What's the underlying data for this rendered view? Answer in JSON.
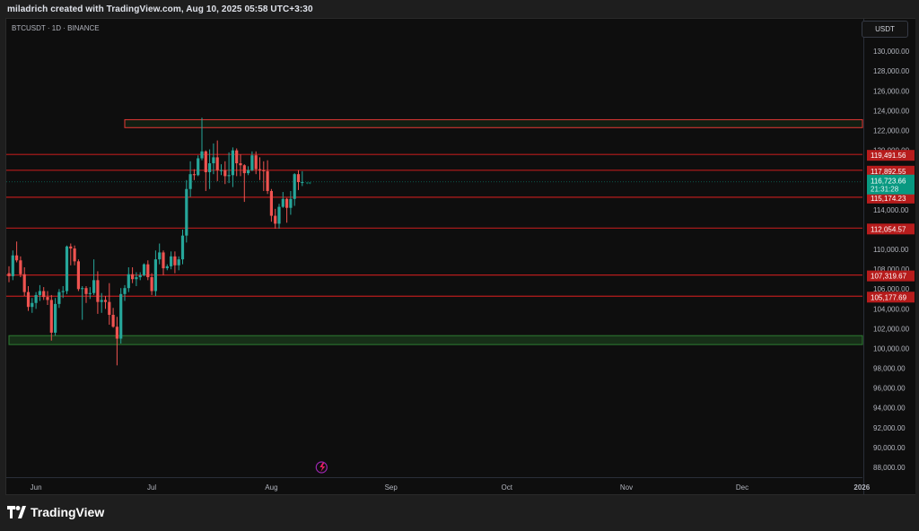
{
  "header": {
    "caption": "miladrich created with TradingView.com, Aug 10, 2025 05:58 UTC+3:30"
  },
  "chart": {
    "symbol_line": "BTCUSDT · 1D · BINANCE",
    "currency_label": "USDT",
    "last_price": "116,723.66",
    "countdown": "21:31:28"
  },
  "footer": {
    "brand": "TradingView"
  },
  "colors": {
    "up": "#26a69a",
    "down": "#ef5350",
    "level_line": "#b71c1c",
    "level_box": "#e53935",
    "support_box": "#2e7d32",
    "last_price": "#089981",
    "plot_bg": "#0e0e0e"
  },
  "chart_data": {
    "type": "candlestick",
    "title": "BTCUSDT · 1D · BINANCE",
    "y_axis": {
      "ylim": [
        87000,
        134000
      ],
      "ticks": [
        "88,000.00",
        "90,000.00",
        "92,000.00",
        "94,000.00",
        "96,000.00",
        "98,000.00",
        "100,000.00",
        "102,000.00",
        "104,000.00",
        "106,000.00",
        "108,000.00",
        "110,000.00",
        "114,000.00",
        "120,000.00",
        "122,000.00",
        "124,000.00",
        "126,000.00",
        "128,000.00",
        "130,000.00"
      ]
    },
    "x_axis": {
      "labels": [
        "Jun",
        "Jul",
        "Aug",
        "Sep",
        "Oct",
        "Nov",
        "Dec",
        "2026"
      ]
    },
    "horizontal_levels": [
      {
        "price": 119491.56,
        "label": "119,491.56"
      },
      {
        "price": 117892.55,
        "label": "117,892.55"
      },
      {
        "price": 115174.23,
        "label": "115,174.23"
      },
      {
        "price": 112054.57,
        "label": "112,054.57"
      },
      {
        "price": 107319.67,
        "label": "107,319.67"
      },
      {
        "price": 105177.69,
        "label": "105,177.69"
      }
    ],
    "zones": [
      {
        "kind": "resistance",
        "from_date": "2025-06-24",
        "to_date": "2026-01-01",
        "top": 123000,
        "bottom": 122200
      },
      {
        "kind": "support",
        "from_date": "2025-05-25",
        "to_date": "2026-01-01",
        "top": 101200,
        "bottom": 100300
      }
    ],
    "last_price": 116723.66,
    "candles": [
      {
        "d": "2025-05-25",
        "o": 107500,
        "h": 108200,
        "l": 106600,
        "c": 107200
      },
      {
        "d": "2025-05-26",
        "o": 107200,
        "h": 109800,
        "l": 106800,
        "c": 109300
      },
      {
        "d": "2025-05-27",
        "o": 109300,
        "h": 110700,
        "l": 108600,
        "c": 108800
      },
      {
        "d": "2025-05-28",
        "o": 108800,
        "h": 109200,
        "l": 107100,
        "c": 107400
      },
      {
        "d": "2025-05-29",
        "o": 107400,
        "h": 108100,
        "l": 105200,
        "c": 105600
      },
      {
        "d": "2025-05-30",
        "o": 105600,
        "h": 106200,
        "l": 103700,
        "c": 104100
      },
      {
        "d": "2025-05-31",
        "o": 104100,
        "h": 105000,
        "l": 103500,
        "c": 104500
      },
      {
        "d": "2025-06-01",
        "o": 104500,
        "h": 105600,
        "l": 103900,
        "c": 105300
      },
      {
        "d": "2025-06-02",
        "o": 105300,
        "h": 106300,
        "l": 104700,
        "c": 105700
      },
      {
        "d": "2025-06-03",
        "o": 105700,
        "h": 106100,
        "l": 104800,
        "c": 105100
      },
      {
        "d": "2025-06-04",
        "o": 105100,
        "h": 105700,
        "l": 104300,
        "c": 104800
      },
      {
        "d": "2025-06-05",
        "o": 104800,
        "h": 105300,
        "l": 100700,
        "c": 101500
      },
      {
        "d": "2025-06-06",
        "o": 101500,
        "h": 105000,
        "l": 101200,
        "c": 104400
      },
      {
        "d": "2025-06-07",
        "o": 104400,
        "h": 105900,
        "l": 104000,
        "c": 105600
      },
      {
        "d": "2025-06-08",
        "o": 105600,
        "h": 106200,
        "l": 105000,
        "c": 105700
      },
      {
        "d": "2025-06-09",
        "o": 105700,
        "h": 110300,
        "l": 105400,
        "c": 110200
      },
      {
        "d": "2025-06-10",
        "o": 110200,
        "h": 110500,
        "l": 108300,
        "c": 110000
      },
      {
        "d": "2025-06-11",
        "o": 110000,
        "h": 110300,
        "l": 108300,
        "c": 108700
      },
      {
        "d": "2025-06-12",
        "o": 108700,
        "h": 108900,
        "l": 105700,
        "c": 105900
      },
      {
        "d": "2025-06-13",
        "o": 105900,
        "h": 106200,
        "l": 102800,
        "c": 106000
      },
      {
        "d": "2025-06-14",
        "o": 106000,
        "h": 106200,
        "l": 104500,
        "c": 105400
      },
      {
        "d": "2025-06-15",
        "o": 105400,
        "h": 106100,
        "l": 104900,
        "c": 105500
      },
      {
        "d": "2025-06-16",
        "o": 105500,
        "h": 108900,
        "l": 105300,
        "c": 106800
      },
      {
        "d": "2025-06-17",
        "o": 106800,
        "h": 107700,
        "l": 103400,
        "c": 104600
      },
      {
        "d": "2025-06-18",
        "o": 104600,
        "h": 105500,
        "l": 103500,
        "c": 104800
      },
      {
        "d": "2025-06-19",
        "o": 104800,
        "h": 105200,
        "l": 103900,
        "c": 104600
      },
      {
        "d": "2025-06-20",
        "o": 104600,
        "h": 106500,
        "l": 102300,
        "c": 103300
      },
      {
        "d": "2025-06-21",
        "o": 103300,
        "h": 104000,
        "l": 102000,
        "c": 102100
      },
      {
        "d": "2025-06-22",
        "o": 102100,
        "h": 103100,
        "l": 98200,
        "c": 100900
      },
      {
        "d": "2025-06-23",
        "o": 100900,
        "h": 106000,
        "l": 100400,
        "c": 105400
      },
      {
        "d": "2025-06-24",
        "o": 105400,
        "h": 106300,
        "l": 104700,
        "c": 106000
      },
      {
        "d": "2025-06-25",
        "o": 106000,
        "h": 108100,
        "l": 105600,
        "c": 107400
      },
      {
        "d": "2025-06-26",
        "o": 107400,
        "h": 108100,
        "l": 106500,
        "c": 106900
      },
      {
        "d": "2025-06-27",
        "o": 106900,
        "h": 107600,
        "l": 106200,
        "c": 107100
      },
      {
        "d": "2025-06-28",
        "o": 107100,
        "h": 107600,
        "l": 106800,
        "c": 107300
      },
      {
        "d": "2025-06-29",
        "o": 107300,
        "h": 108500,
        "l": 107200,
        "c": 108400
      },
      {
        "d": "2025-06-30",
        "o": 108400,
        "h": 108800,
        "l": 106800,
        "c": 107100
      },
      {
        "d": "2025-07-01",
        "o": 107100,
        "h": 107500,
        "l": 105300,
        "c": 105700
      },
      {
        "d": "2025-07-02",
        "o": 105700,
        "h": 109800,
        "l": 105200,
        "c": 108900
      },
      {
        "d": "2025-07-03",
        "o": 108900,
        "h": 110500,
        "l": 108400,
        "c": 109600
      },
      {
        "d": "2025-07-04",
        "o": 109600,
        "h": 109800,
        "l": 107300,
        "c": 108000
      },
      {
        "d": "2025-07-05",
        "o": 108000,
        "h": 108400,
        "l": 107800,
        "c": 108200
      },
      {
        "d": "2025-07-06",
        "o": 108200,
        "h": 109700,
        "l": 107900,
        "c": 109200
      },
      {
        "d": "2025-07-07",
        "o": 109200,
        "h": 109700,
        "l": 107500,
        "c": 108300
      },
      {
        "d": "2025-07-08",
        "o": 108300,
        "h": 109200,
        "l": 107800,
        "c": 108900
      },
      {
        "d": "2025-07-09",
        "o": 108900,
        "h": 111900,
        "l": 108400,
        "c": 111300
      },
      {
        "d": "2025-07-10",
        "o": 111300,
        "h": 116900,
        "l": 110600,
        "c": 116000
      },
      {
        "d": "2025-07-11",
        "o": 116000,
        "h": 118800,
        "l": 115200,
        "c": 117500
      },
      {
        "d": "2025-07-12",
        "o": 117500,
        "h": 118000,
        "l": 116900,
        "c": 117400
      },
      {
        "d": "2025-07-13",
        "o": 117400,
        "h": 119400,
        "l": 117300,
        "c": 119100
      },
      {
        "d": "2025-07-14",
        "o": 119100,
        "h": 123200,
        "l": 118900,
        "c": 119800
      },
      {
        "d": "2025-07-15",
        "o": 119800,
        "h": 119900,
        "l": 115800,
        "c": 117700
      },
      {
        "d": "2025-07-16",
        "o": 117700,
        "h": 120000,
        "l": 116000,
        "c": 118600
      },
      {
        "d": "2025-07-17",
        "o": 118600,
        "h": 120600,
        "l": 117500,
        "c": 119200
      },
      {
        "d": "2025-07-18",
        "o": 119200,
        "h": 120900,
        "l": 116800,
        "c": 117900
      },
      {
        "d": "2025-07-19",
        "o": 117900,
        "h": 118500,
        "l": 117400,
        "c": 117900
      },
      {
        "d": "2025-07-20",
        "o": 117900,
        "h": 118800,
        "l": 116500,
        "c": 117300
      },
      {
        "d": "2025-07-21",
        "o": 117300,
        "h": 119700,
        "l": 116600,
        "c": 117400
      },
      {
        "d": "2025-07-22",
        "o": 117400,
        "h": 120200,
        "l": 116200,
        "c": 119900
      },
      {
        "d": "2025-07-23",
        "o": 119900,
        "h": 120100,
        "l": 117300,
        "c": 118600
      },
      {
        "d": "2025-07-24",
        "o": 118600,
        "h": 119500,
        "l": 117300,
        "c": 118400
      },
      {
        "d": "2025-07-25",
        "o": 118400,
        "h": 118500,
        "l": 114700,
        "c": 117600
      },
      {
        "d": "2025-07-26",
        "o": 117600,
        "h": 118300,
        "l": 117400,
        "c": 117900
      },
      {
        "d": "2025-07-27",
        "o": 117900,
        "h": 119800,
        "l": 117800,
        "c": 119400
      },
      {
        "d": "2025-07-28",
        "o": 119400,
        "h": 119800,
        "l": 117500,
        "c": 118000
      },
      {
        "d": "2025-07-29",
        "o": 118000,
        "h": 119200,
        "l": 116900,
        "c": 117900
      },
      {
        "d": "2025-07-30",
        "o": 117900,
        "h": 118800,
        "l": 115800,
        "c": 117800
      },
      {
        "d": "2025-07-31",
        "o": 117800,
        "h": 118900,
        "l": 115500,
        "c": 115800
      },
      {
        "d": "2025-08-01",
        "o": 115800,
        "h": 116000,
        "l": 112700,
        "c": 113300
      },
      {
        "d": "2025-08-02",
        "o": 113300,
        "h": 114000,
        "l": 112000,
        "c": 112500
      },
      {
        "d": "2025-08-03",
        "o": 112500,
        "h": 114500,
        "l": 112000,
        "c": 114200
      },
      {
        "d": "2025-08-04",
        "o": 114200,
        "h": 115700,
        "l": 114100,
        "c": 115000
      },
      {
        "d": "2025-08-05",
        "o": 115000,
        "h": 115100,
        "l": 112600,
        "c": 114100
      },
      {
        "d": "2025-08-06",
        "o": 114100,
        "h": 115800,
        "l": 113400,
        "c": 115000
      },
      {
        "d": "2025-08-07",
        "o": 115000,
        "h": 117600,
        "l": 114300,
        "c": 117500
      },
      {
        "d": "2025-08-08",
        "o": 117500,
        "h": 117900,
        "l": 115900,
        "c": 116700
      },
      {
        "d": "2025-08-09",
        "o": 116700,
        "h": 117800,
        "l": 116300,
        "c": 116700
      }
    ]
  }
}
